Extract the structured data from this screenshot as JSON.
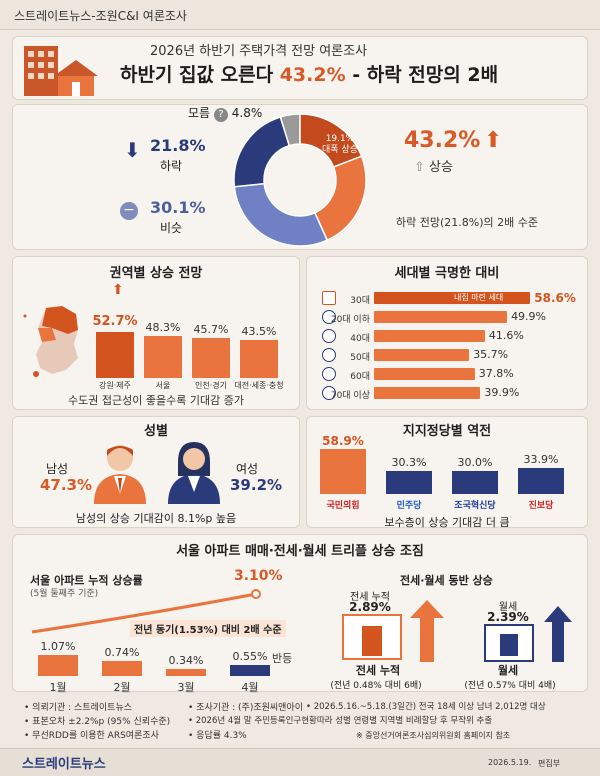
{
  "topbar": "스트레이트뉴스-조원C&I 여론조사",
  "header": {
    "subtitle": "2026년 하반기 주택가격 전망 여론조사",
    "title_a": "하반기 집값 오른다 ",
    "title_b": "43.2%",
    "title_c": " - 하락 전망의 2배"
  },
  "donut": {
    "unknown_label": "모름",
    "unknown_pct": "4.8%",
    "down_pct": "21.8%",
    "down_label": "하락",
    "same_pct": "30.1%",
    "same_label": "비슷",
    "up_pct": "43.2%",
    "up_label": "상승",
    "inner_pct": "19.1%",
    "inner_label": "대폭 상승",
    "note": "하락 전망(21.8%)의 2배 수준"
  },
  "region": {
    "title": "권역별 상승 전망",
    "footnote": "수도권 접근성이 좋을수록 기대감 증가"
  },
  "generation": {
    "title": "세대별 극명한 대비",
    "highlight": "내집 마련 세대"
  },
  "gender": {
    "title": "성별",
    "male_label": "남성",
    "male_pct": "47.3%",
    "female_label": "여성",
    "female_pct": "39.2%",
    "footnote": "남성의 상승 기대감이 8.1%p 높음"
  },
  "party": {
    "title": "지지정당별 역전",
    "footnote": "보수층이 상승 기대감 더 큼"
  },
  "seoul": {
    "title": "서울 아파트 매매·전세·월세 트리플 상승 조짐",
    "left_title": "서울 아파트 누적 상승률",
    "left_sub": "(5월 둘째주 기준)",
    "peak": "3.10%",
    "compare": "전년 동기(1.53%) 대비 2배 수준",
    "rebound": "반등",
    "right_title": "전세·월세 동반 상승",
    "jeonse_top": "전세 누적",
    "jeonse_pct": "2.89%",
    "jeonse_bottom": "전세 누적",
    "jeonse_note": "(전년 0.48% 대비 6배)",
    "wolse_top": "월세",
    "wolse_pct": "2.39%",
    "wolse_bottom": "월세",
    "wolse_note": "(전년 0.57% 대비 4배)"
  },
  "footer": {
    "f1": "• 의뢰기관 : 스트레이트뉴스",
    "f2": "• 조사기관 : (주)조원씨앤아이",
    "f3": "• 2026.5.16.~5.18.(3일간) 전국 18세 이상 남녀 2,012명 대상",
    "f4": "• 표본오차 ±2.2%p (95% 신뢰수준)",
    "f5": "• 2026년 4월 말 주민등록인구현황따라 성별 연령별 지역별 비례할당 후 무작위 추출",
    "f6": "• 무선RDD를 이용한 ARS여론조사",
    "f7": "• 응답률 4.3%",
    "f8": "※ 중앙선거여론조사심의위원회 홈페이지 참조",
    "date": "2026.5.19.",
    "editor": "편집부",
    "logo": "스트레이트뉴스"
  },
  "colors": {
    "orange": "#e9743e",
    "red": "#d4541f",
    "navy": "#2b3a7a",
    "grey": "#9a9a9a",
    "blue": "#6f80c4"
  },
  "chart_data": [
    {
      "type": "pie",
      "categories": [
        "상승",
        "비슷",
        "하락",
        "모름"
      ],
      "values": [
        43.2,
        30.1,
        21.8,
        4.8
      ]
    },
    {
      "type": "bar",
      "title": "권역별 상승 전망",
      "categories": [
        "강원·제주",
        "서울",
        "인천·경기",
        "대전·세종·충청"
      ],
      "values": [
        52.7,
        48.3,
        45.7,
        43.5
      ],
      "value_labels": [
        "52.7%",
        "48.3%",
        "45.7%",
        "43.5%"
      ]
    },
    {
      "type": "bar",
      "title": "세대별 극명한 대비",
      "categories": [
        "30대",
        "20대 이하",
        "40대",
        "50대",
        "60대",
        "70대 이상"
      ],
      "values": [
        58.6,
        49.9,
        41.6,
        35.7,
        37.8,
        39.9
      ],
      "value_labels": [
        "58.6%",
        "49.9%",
        "41.6%",
        "35.7%",
        "37.8%",
        "39.9%"
      ]
    },
    {
      "type": "bar",
      "title": "지지정당별 역전",
      "categories": [
        "국민의힘",
        "민주당",
        "조국혁신당",
        "진보당"
      ],
      "values": [
        58.9,
        30.3,
        30.0,
        33.9
      ],
      "value_labels": [
        "58.9%",
        "30.3%",
        "30.0%",
        "33.9%"
      ]
    },
    {
      "type": "bar",
      "title": "서울 아파트 누적 상승률",
      "categories": [
        "1월",
        "2월",
        "3월",
        "4월"
      ],
      "values": [
        1.07,
        0.74,
        0.34,
        0.55
      ],
      "value_labels": [
        "1.07%",
        "0.74%",
        "0.34%",
        "0.55%"
      ]
    }
  ]
}
